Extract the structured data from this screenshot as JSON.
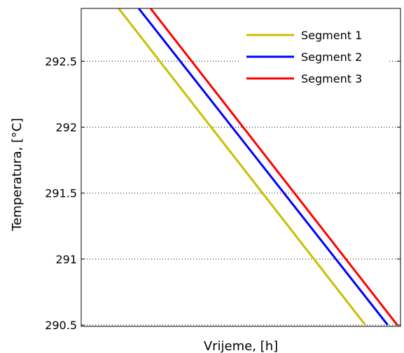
{
  "chart_data": {
    "type": "line",
    "title": "",
    "xlabel": "Vrijeme, [h]",
    "ylabel": "Temperatura, [°C]",
    "ylim": [
      290.49,
      292.9
    ],
    "xlim": [
      0,
      100
    ],
    "x_tick_labels_shown": false,
    "y_ticks": [
      290.5,
      291,
      291.5,
      292,
      292.5
    ],
    "y_tick_labels": [
      "290.5",
      "291",
      "291.5",
      "292",
      "292.5"
    ],
    "grid": "horizontal dotted",
    "legend_position": "top-right",
    "series": [
      {
        "name": "Segment 1",
        "color": "#c8c000",
        "x": [
          11.7,
          89.0
        ],
        "y": [
          292.9,
          290.5
        ]
      },
      {
        "name": "Segment 2",
        "color": "#0000ff",
        "x": [
          18.0,
          96.0
        ],
        "y": [
          292.9,
          290.5
        ]
      },
      {
        "name": "Segment 3",
        "color": "#ff0000",
        "x": [
          21.7,
          99.0
        ],
        "y": [
          292.9,
          290.5
        ]
      }
    ]
  }
}
